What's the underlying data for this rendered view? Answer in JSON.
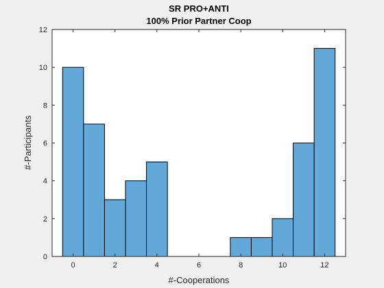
{
  "chart_data": {
    "type": "bar",
    "title": "SR PRO+ANTI",
    "subtitle": "100% Prior Partner Coop",
    "xlabel": "#-Cooperations",
    "ylabel": "#-Participants",
    "x_centers": [
      0,
      1,
      2,
      3,
      4,
      5,
      6,
      7,
      8,
      9,
      10,
      11,
      12
    ],
    "values": [
      10,
      7,
      3,
      4,
      5,
      0,
      0,
      0,
      1,
      1,
      2,
      6,
      11
    ],
    "bin_width": 1,
    "xlim": [
      -1,
      13
    ],
    "ylim": [
      0,
      12
    ],
    "xticks": [
      0,
      2,
      4,
      6,
      8,
      10,
      12
    ],
    "yticks": [
      0,
      2,
      4,
      6,
      8,
      10,
      12
    ],
    "bar_color": "#62a8d8",
    "edge_color": "#000000",
    "grid": false,
    "legend": "none"
  }
}
